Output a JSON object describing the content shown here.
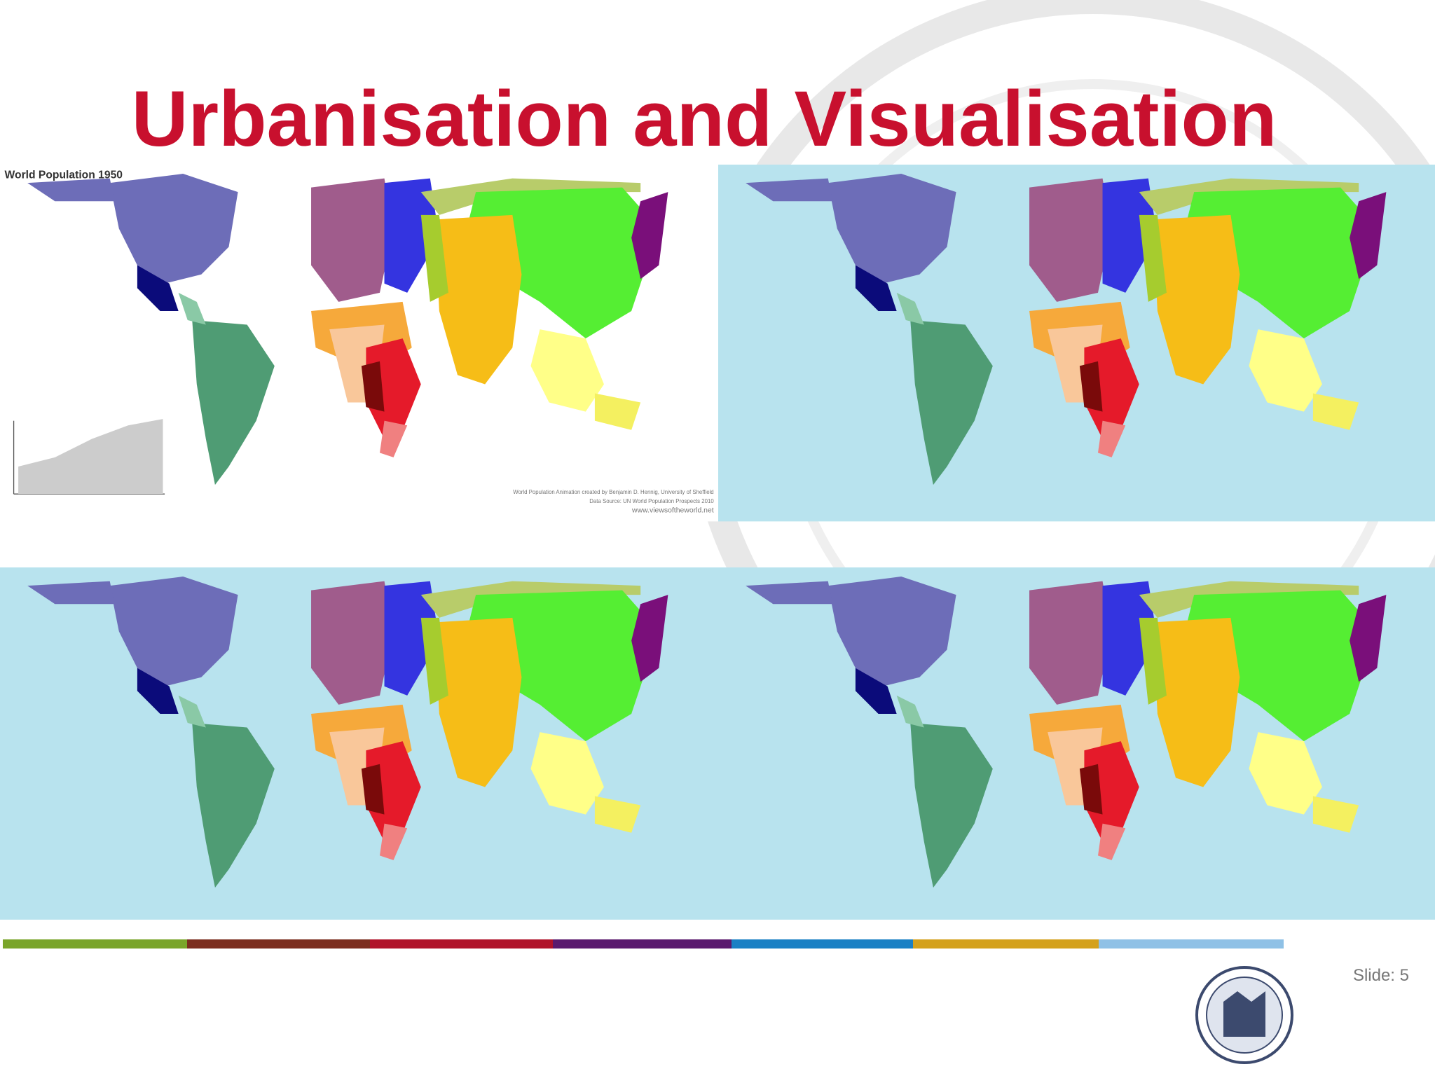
{
  "slide": {
    "title": "Urbanisation and Visualisation",
    "maps": {
      "caption": "World Population 1950",
      "credits": [
        "World Population Animation created by Benjamin D. Hennig, University of Sheffield",
        "Data Source: UN World Population Prospects 2010",
        "www.viewsoftheworld.net"
      ]
    },
    "footer": {
      "slide_number": "Slide: 5"
    }
  }
}
